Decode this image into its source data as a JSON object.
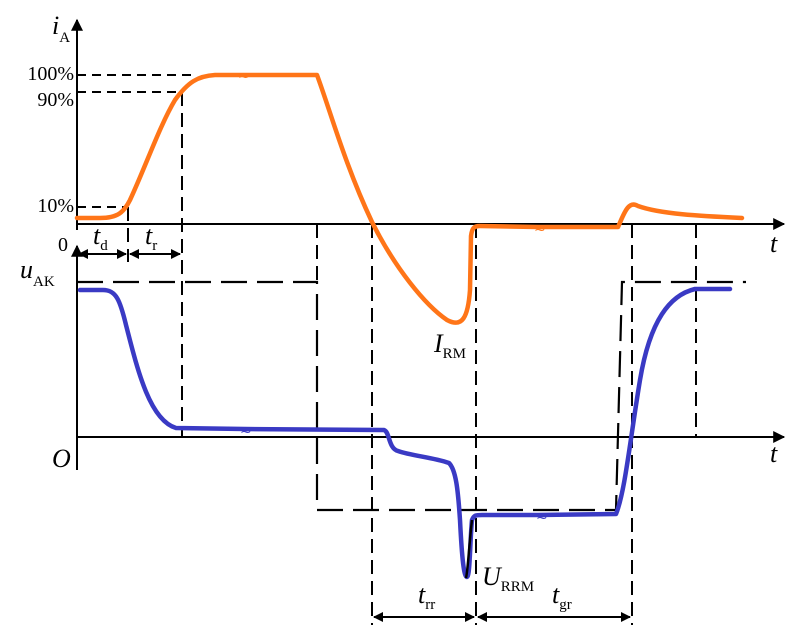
{
  "axes": {
    "current_symbol": "i",
    "current_subscript": "A",
    "voltage_symbol": "u",
    "voltage_subscript": "AK",
    "time_label_top": "t",
    "time_label_bottom": "t",
    "origin_top": "0",
    "origin_bottom": "O"
  },
  "levels": {
    "p100": "100%",
    "p90": "90%",
    "p10": "10%"
  },
  "intervals": {
    "td_symbol": "t",
    "td_subscript": "d",
    "tr_symbol": "t",
    "tr_subscript": "r",
    "trr_symbol": "t",
    "trr_subscript": "rr",
    "tgr_symbol": "t",
    "tgr_subscript": "gr"
  },
  "annotations": {
    "irm_symbol": "I",
    "irm_subscript": "RM",
    "urrm_symbol": "U",
    "urrm_subscript": "RRM"
  },
  "colors": {
    "current": "#ff7518",
    "voltage": "#3a3ac4",
    "axes": "#000000"
  }
}
